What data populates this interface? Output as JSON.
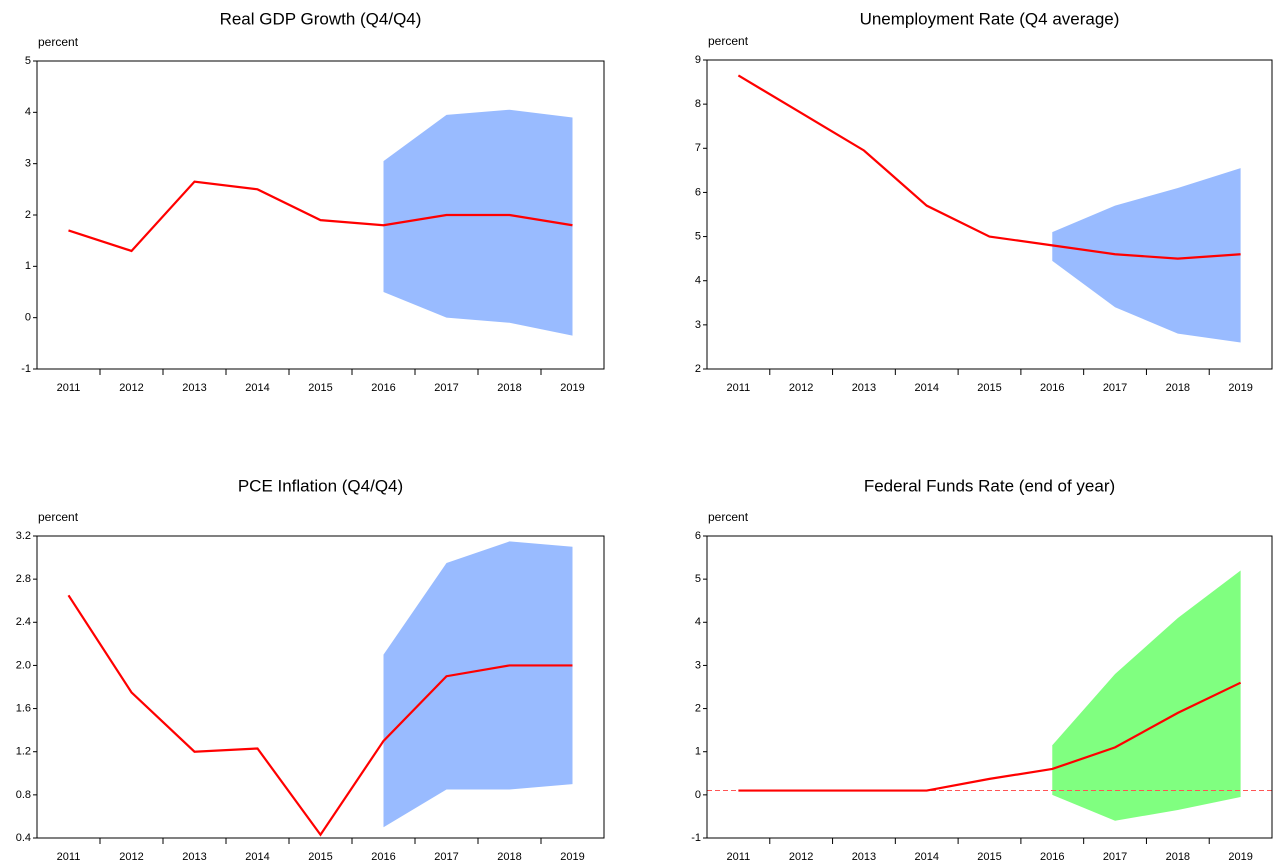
{
  "chart_data": [
    {
      "type": "line",
      "title": "Real GDP Growth (Q4/Q4)",
      "y_label": "percent",
      "categories": [
        "2011",
        "2012",
        "2013",
        "2014",
        "2015",
        "2016",
        "2017",
        "2018",
        "2019"
      ],
      "ylim": [
        -1,
        5
      ],
      "yticks": [
        -1,
        0,
        1,
        2,
        3,
        4,
        5
      ],
      "series": [
        {
          "color": "#ff0000",
          "values": [
            1.7,
            1.3,
            2.65,
            2.5,
            1.9,
            1.8,
            2.0,
            2.0,
            1.8
          ]
        }
      ],
      "band": {
        "color": "#99bbff",
        "upper": [
          null,
          null,
          null,
          null,
          null,
          3.05,
          3.95,
          4.05,
          3.9
        ],
        "lower": [
          null,
          null,
          null,
          null,
          null,
          0.5,
          0.0,
          -0.1,
          -0.35
        ]
      }
    },
    {
      "type": "line",
      "title": "Unemployment Rate (Q4 average)",
      "y_label": "percent",
      "categories": [
        "2011",
        "2012",
        "2013",
        "2014",
        "2015",
        "2016",
        "2017",
        "2018",
        "2019"
      ],
      "ylim": [
        2,
        9
      ],
      "yticks": [
        2,
        3,
        4,
        5,
        6,
        7,
        8,
        9
      ],
      "series": [
        {
          "color": "#ff0000",
          "values": [
            8.65,
            7.8,
            6.95,
            5.7,
            5.0,
            4.8,
            4.6,
            4.5,
            4.6
          ]
        }
      ],
      "band": {
        "color": "#99bbff",
        "upper": [
          null,
          null,
          null,
          null,
          null,
          5.1,
          5.7,
          6.1,
          6.55
        ],
        "lower": [
          null,
          null,
          null,
          null,
          null,
          4.45,
          3.4,
          2.8,
          2.6
        ]
      }
    },
    {
      "type": "line",
      "title": "PCE Inflation (Q4/Q4)",
      "y_label": "percent",
      "categories": [
        "2011",
        "2012",
        "2013",
        "2014",
        "2015",
        "2016",
        "2017",
        "2018",
        "2019"
      ],
      "ylim": [
        0.4,
        3.2
      ],
      "yticks": [
        0.4,
        0.8,
        1.2,
        1.6,
        {
          "value": 2,
          "label": "2.0"
        },
        2.4,
        2.8,
        3.2
      ],
      "series": [
        {
          "color": "#ff0000",
          "values": [
            2.65,
            1.75,
            1.2,
            1.23,
            0.43,
            1.3,
            1.9,
            2.0,
            2.0
          ]
        }
      ],
      "band": {
        "color": "#99bbff",
        "upper": [
          null,
          null,
          null,
          null,
          null,
          2.1,
          2.95,
          3.15,
          3.1
        ],
        "lower": [
          null,
          null,
          null,
          null,
          null,
          0.5,
          0.85,
          0.85,
          0.9
        ]
      }
    },
    {
      "type": "line",
      "title": "Federal Funds Rate (end of year)",
      "y_label": "percent",
      "categories": [
        "2011",
        "2012",
        "2013",
        "2014",
        "2015",
        "2016",
        "2017",
        "2018",
        "2019"
      ],
      "ylim": [
        -1,
        6
      ],
      "yticks": [
        -1,
        0,
        1,
        2,
        3,
        4,
        5,
        6
      ],
      "series": [
        {
          "color": "#ff0000",
          "values": [
            0.1,
            0.1,
            0.1,
            0.1,
            0.37,
            0.6,
            1.1,
            1.9,
            2.6
          ]
        }
      ],
      "band": {
        "color": "#80ff80",
        "upper": [
          null,
          null,
          null,
          null,
          null,
          1.15,
          2.8,
          4.1,
          5.2
        ],
        "lower": [
          null,
          null,
          null,
          null,
          null,
          0.0,
          -0.6,
          -0.35,
          -0.05
        ]
      },
      "reference_line": {
        "value": 0.1,
        "color": "#ff5555",
        "dashed": true
      }
    }
  ]
}
